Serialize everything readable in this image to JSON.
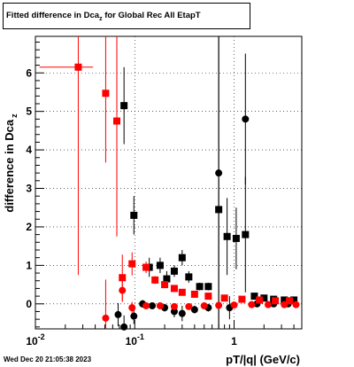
{
  "title": {
    "main": "Fitted difference in Dca",
    "sub": "z",
    "rest": " for Global Rec All EtapT"
  },
  "timestamp": "Wed Dec 20 21:05:38 2023",
  "chart_data": {
    "type": "scatter",
    "xlabel": "pT/|q| (GeV/c)",
    "ylabel_main": "difference in Dca",
    "ylabel_sub": "z",
    "xscale": "log",
    "xlim": [
      0.01,
      4.8
    ],
    "ylim": [
      -0.65,
      6.95
    ],
    "grid": true,
    "x_ticks": [
      {
        "value": 0.01,
        "base": "10",
        "exp": "-2"
      },
      {
        "value": 0.1,
        "base": "10",
        "exp": "-1"
      },
      {
        "value": 1,
        "base": "1",
        "exp": ""
      }
    ],
    "y_ticks": [
      0,
      1,
      2,
      3,
      4,
      5,
      6
    ],
    "series": [
      {
        "color": "#000000",
        "marker": "square",
        "points": [
          {
            "x": 0.078,
            "y": 5.15,
            "ey": 1.0
          },
          {
            "x": 0.098,
            "y": 2.3,
            "ey": 0.5
          },
          {
            "x": 0.14,
            "y": 0.95,
            "ey": 0.25
          },
          {
            "x": 0.18,
            "y": 1.0,
            "ey": 0.2
          },
          {
            "x": 0.21,
            "y": 0.65,
            "ey": 0.2
          },
          {
            "x": 0.25,
            "y": 0.85,
            "ey": 0.15
          },
          {
            "x": 0.3,
            "y": 1.2,
            "ey": 0.2
          },
          {
            "x": 0.35,
            "y": 0.7,
            "ey": 0.15
          },
          {
            "x": 0.45,
            "y": 0.45,
            "ey": 0.1
          },
          {
            "x": 0.55,
            "y": 0.45,
            "ey": 0.1
          },
          {
            "x": 0.7,
            "y": 2.45,
            "ey": 6.0
          },
          {
            "x": 0.85,
            "y": 1.75,
            "ey": 1.0
          },
          {
            "x": 1.05,
            "y": 1.7,
            "ey": 0.8
          },
          {
            "x": 1.3,
            "y": 1.8,
            "ey": 1.5
          },
          {
            "x": 1.6,
            "y": 0.2,
            "ey": 0.05
          },
          {
            "x": 2.0,
            "y": 0.15,
            "ey": 0.05
          },
          {
            "x": 2.5,
            "y": 0.12,
            "ey": 0.05
          },
          {
            "x": 3.2,
            "y": 0.1,
            "ey": 0.05
          },
          {
            "x": 4.0,
            "y": 0.1,
            "ey": 0.05
          }
        ]
      },
      {
        "color": "#000000",
        "marker": "circle",
        "points": [
          {
            "x": 0.068,
            "y": -0.28,
            "ey": 0.3
          },
          {
            "x": 0.078,
            "y": -0.6,
            "ey": 0.3
          },
          {
            "x": 0.098,
            "y": -0.32,
            "ey": 0.2
          },
          {
            "x": 0.12,
            "y": 0.0,
            "ey": 0.1
          },
          {
            "x": 0.15,
            "y": -0.05,
            "ey": 0.08
          },
          {
            "x": 0.2,
            "y": -0.1,
            "ey": 0.1
          },
          {
            "x": 0.25,
            "y": -0.2,
            "ey": 0.15
          },
          {
            "x": 0.3,
            "y": -0.25,
            "ey": 0.2
          },
          {
            "x": 0.4,
            "y": -0.15,
            "ey": 0.1
          },
          {
            "x": 0.55,
            "y": -0.1,
            "ey": 0.1
          },
          {
            "x": 0.7,
            "y": 3.4,
            "ey": 4.0
          },
          {
            "x": 0.9,
            "y": -0.1,
            "ey": 0.3
          },
          {
            "x": 1.3,
            "y": 4.8,
            "ey": 1.7
          },
          {
            "x": 1.7,
            "y": 0.0,
            "ey": 0.05
          },
          {
            "x": 2.5,
            "y": 0.0,
            "ey": 0.05
          },
          {
            "x": 3.5,
            "y": 0.0,
            "ey": 0.05
          }
        ]
      },
      {
        "color": "#ff0000",
        "marker": "square",
        "points": [
          {
            "x": 0.027,
            "y": 6.15,
            "ey": 5.4,
            "ex": [
              0.011,
              0.038
            ]
          },
          {
            "x": 0.051,
            "y": 5.47,
            "ey": 1.8
          },
          {
            "x": 0.066,
            "y": 4.75,
            "ey": 3.0
          },
          {
            "x": 0.075,
            "y": 0.68,
            "ey": 0.6
          },
          {
            "x": 0.094,
            "y": 1.04,
            "ey": 0.3
          },
          {
            "x": 0.13,
            "y": 0.95,
            "ey": 0.15
          },
          {
            "x": 0.16,
            "y": 0.62,
            "ey": 0.1
          },
          {
            "x": 0.2,
            "y": 0.5,
            "ey": 0.08
          },
          {
            "x": 0.25,
            "y": 0.4,
            "ey": 0.06
          },
          {
            "x": 0.3,
            "y": 0.3,
            "ey": 0.05
          },
          {
            "x": 0.4,
            "y": 0.25,
            "ey": 0.05
          },
          {
            "x": 0.55,
            "y": 0.2,
            "ey": 0.05
          },
          {
            "x": 0.8,
            "y": 0.15,
            "ey": 0.05
          },
          {
            "x": 1.2,
            "y": 0.12,
            "ey": 0.05
          },
          {
            "x": 1.8,
            "y": 0.1,
            "ey": 0.05
          },
          {
            "x": 2.6,
            "y": 0.08,
            "ey": 0.05
          },
          {
            "x": 3.6,
            "y": 0.08,
            "ey": 0.05
          }
        ]
      },
      {
        "color": "#ff0000",
        "marker": "circle",
        "points": [
          {
            "x": 0.051,
            "y": -0.37,
            "ey": 1.0
          },
          {
            "x": 0.075,
            "y": 0.35,
            "ey": 0.3
          },
          {
            "x": 0.094,
            "y": -0.1,
            "ey": 0.15
          },
          {
            "x": 0.13,
            "y": -0.05,
            "ey": 0.08
          },
          {
            "x": 0.18,
            "y": -0.05,
            "ey": 0.05
          },
          {
            "x": 0.25,
            "y": -0.07,
            "ey": 0.05
          },
          {
            "x": 0.35,
            "y": -0.07,
            "ey": 0.05
          },
          {
            "x": 0.5,
            "y": -0.05,
            "ey": 0.05
          },
          {
            "x": 0.7,
            "y": -0.04,
            "ey": 0.05
          },
          {
            "x": 1.0,
            "y": -0.03,
            "ey": 0.05
          },
          {
            "x": 1.5,
            "y": -0.02,
            "ey": 0.05
          },
          {
            "x": 2.2,
            "y": -0.02,
            "ey": 0.05
          },
          {
            "x": 3.2,
            "y": -0.02,
            "ey": 0.05
          },
          {
            "x": 4.2,
            "y": -0.02,
            "ey": 0.05
          }
        ]
      }
    ]
  }
}
